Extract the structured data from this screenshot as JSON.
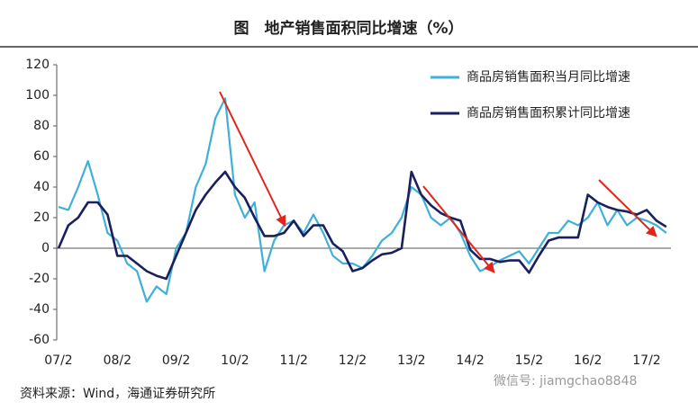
{
  "chart_data": {
    "type": "line",
    "title": "图　地产销售面积同比增速（%）",
    "source": "资料来源：Wind，海通证券研究所",
    "watermark": "微信号: jiamgchao8848",
    "categories": [
      "07/2",
      null,
      null,
      null,
      null,
      null,
      "08/2",
      null,
      null,
      null,
      null,
      null,
      "09/2",
      null,
      null,
      null,
      null,
      null,
      "10/2",
      null,
      null,
      null,
      null,
      null,
      "11/2",
      null,
      null,
      null,
      null,
      null,
      "12/2",
      null,
      null,
      null,
      null,
      null,
      "13/2",
      null,
      null,
      null,
      null,
      null,
      "14/2",
      null,
      null,
      null,
      null,
      null,
      "15/2",
      null,
      null,
      null,
      null,
      null,
      "16/2",
      null,
      null,
      null,
      null,
      null,
      "17/2",
      null,
      null
    ],
    "series": [
      {
        "name": "商品房销售面积当月同比增速",
        "color": "#3fb0d8",
        "values": [
          27,
          25,
          40,
          57,
          35,
          10,
          5,
          -10,
          -15,
          -35,
          -25,
          -30,
          0,
          10,
          40,
          55,
          85,
          98,
          35,
          20,
          30,
          -15,
          5,
          15,
          18,
          10,
          22,
          10,
          -5,
          -10,
          -10,
          -13,
          -5,
          5,
          10,
          20,
          40,
          35,
          20,
          15,
          20,
          10,
          -5,
          -15,
          -12,
          -8,
          -5,
          -2,
          -10,
          0,
          10,
          10,
          18,
          15,
          20,
          30,
          15,
          25,
          15,
          20,
          18,
          15,
          10
        ]
      },
      {
        "name": "商品房销售面积累计同比增速",
        "color": "#1a1f5e",
        "values": [
          0,
          15,
          20,
          30,
          30,
          22,
          -5,
          -5,
          -10,
          -15,
          -18,
          -20,
          -5,
          10,
          25,
          35,
          43,
          50,
          40,
          33,
          20,
          8,
          8,
          10,
          18,
          8,
          15,
          15,
          3,
          -2,
          -15,
          -13,
          -8,
          -4,
          -3,
          0,
          50,
          35,
          28,
          23,
          20,
          18,
          -1,
          -7,
          -7,
          -9,
          -8,
          -8,
          -16,
          -5,
          5,
          7,
          7,
          7,
          35,
          30,
          27,
          25,
          24,
          22,
          25,
          18,
          14
        ]
      }
    ],
    "ylim": [
      -60,
      120
    ],
    "yticks": [
      -60,
      -40,
      -20,
      0,
      20,
      40,
      60,
      80,
      100,
      120
    ],
    "legend": "upper right"
  }
}
